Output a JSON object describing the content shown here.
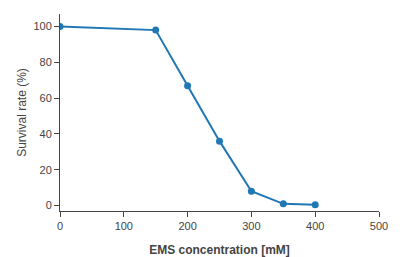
{
  "chart_data": {
    "type": "line",
    "x": [
      0,
      150,
      200,
      250,
      300,
      350,
      400
    ],
    "values": [
      100,
      98,
      67,
      36,
      8,
      1,
      0.5
    ],
    "xlabel": "EMS concentration [mM]",
    "ylabel": "Survival rate (%)",
    "xlim": [
      0,
      500
    ],
    "ylim": [
      -3,
      107
    ],
    "xticks": [
      0,
      100,
      200,
      300,
      400,
      500
    ],
    "yticks": [
      0,
      20,
      40,
      60,
      80,
      100
    ],
    "grid": false,
    "marker": "circle"
  }
}
